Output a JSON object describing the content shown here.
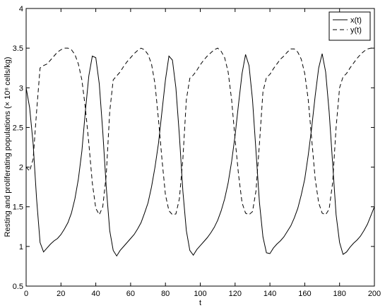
{
  "chart_data": {
    "type": "line",
    "xlabel": "t",
    "ylabel": "Resting and proliferating populations (× 10⁸ cells/kg)",
    "x": [
      0,
      2,
      4,
      6,
      8,
      10,
      12,
      14,
      16,
      18,
      20,
      22,
      24,
      26,
      28,
      30,
      32,
      34,
      36,
      38,
      40,
      42,
      44,
      46,
      48,
      50,
      52,
      54,
      56,
      58,
      60,
      62,
      64,
      66,
      68,
      70,
      72,
      74,
      76,
      78,
      80,
      82,
      84,
      86,
      88,
      90,
      92,
      94,
      96,
      98,
      100,
      102,
      104,
      106,
      108,
      110,
      112,
      114,
      116,
      118,
      120,
      122,
      124,
      126,
      128,
      130,
      132,
      134,
      136,
      138,
      140,
      142,
      144,
      146,
      148,
      150,
      152,
      154,
      156,
      158,
      160,
      162,
      164,
      166,
      168,
      170,
      172,
      174,
      176,
      178,
      180,
      182,
      184,
      186,
      188,
      190,
      192,
      194,
      196,
      198,
      200
    ],
    "series": [
      {
        "name": "x(t)",
        "color": "#000000",
        "linestyle": "solid",
        "values": [
          3.0,
          2.75,
          2.3,
          1.6,
          1.05,
          0.93,
          0.98,
          1.03,
          1.07,
          1.1,
          1.15,
          1.22,
          1.3,
          1.42,
          1.6,
          1.85,
          2.2,
          2.7,
          3.15,
          3.4,
          3.38,
          3.05,
          2.45,
          1.75,
          1.2,
          0.95,
          0.88,
          0.95,
          1.0,
          1.05,
          1.1,
          1.15,
          1.22,
          1.3,
          1.42,
          1.55,
          1.75,
          2.0,
          2.3,
          2.7,
          3.1,
          3.4,
          3.35,
          3.0,
          2.4,
          1.7,
          1.2,
          0.95,
          0.89,
          0.96,
          1.01,
          1.06,
          1.11,
          1.17,
          1.24,
          1.33,
          1.45,
          1.6,
          1.8,
          2.07,
          2.4,
          2.8,
          3.18,
          3.42,
          3.28,
          2.85,
          2.2,
          1.55,
          1.12,
          0.92,
          0.91,
          0.98,
          1.03,
          1.07,
          1.12,
          1.19,
          1.26,
          1.36,
          1.48,
          1.65,
          1.85,
          2.15,
          2.5,
          2.9,
          3.25,
          3.43,
          3.2,
          2.7,
          2.05,
          1.4,
          1.05,
          0.9,
          0.93,
          0.99,
          1.04,
          1.08,
          1.13,
          1.2,
          1.28,
          1.39,
          1.5
        ]
      },
      {
        "name": "y(t)",
        "color": "#000000",
        "linestyle": "dashed",
        "values": [
          2.0,
          1.95,
          2.1,
          2.7,
          3.25,
          3.28,
          3.3,
          3.35,
          3.4,
          3.45,
          3.48,
          3.5,
          3.5,
          3.48,
          3.42,
          3.3,
          3.1,
          2.75,
          2.3,
          1.8,
          1.48,
          1.4,
          1.5,
          1.9,
          2.7,
          3.1,
          3.15,
          3.2,
          3.27,
          3.33,
          3.38,
          3.43,
          3.47,
          3.5,
          3.48,
          3.42,
          3.3,
          3.05,
          2.6,
          2.1,
          1.65,
          1.45,
          1.4,
          1.41,
          1.6,
          2.1,
          2.85,
          3.12,
          3.16,
          3.22,
          3.29,
          3.35,
          3.4,
          3.44,
          3.48,
          3.5,
          3.46,
          3.38,
          3.2,
          2.85,
          2.35,
          1.9,
          1.55,
          1.42,
          1.4,
          1.44,
          1.7,
          2.3,
          2.95,
          3.13,
          3.17,
          3.24,
          3.3,
          3.36,
          3.4,
          3.45,
          3.49,
          3.49,
          3.45,
          3.36,
          3.18,
          2.85,
          2.35,
          1.85,
          1.55,
          1.42,
          1.4,
          1.47,
          1.8,
          2.5,
          3.0,
          3.14,
          3.18,
          3.25,
          3.31,
          3.37,
          3.42,
          3.46,
          3.49,
          3.5,
          3.5
        ]
      }
    ],
    "xlim": [
      0,
      200
    ],
    "xticks": [
      0,
      20,
      40,
      60,
      80,
      100,
      120,
      140,
      160,
      180,
      200
    ],
    "ylim": [
      0.5,
      4
    ],
    "yticks": [
      0.5,
      1,
      1.5,
      2,
      2.5,
      3,
      3.5,
      4
    ],
    "legend": "top-right",
    "grid": false
  }
}
